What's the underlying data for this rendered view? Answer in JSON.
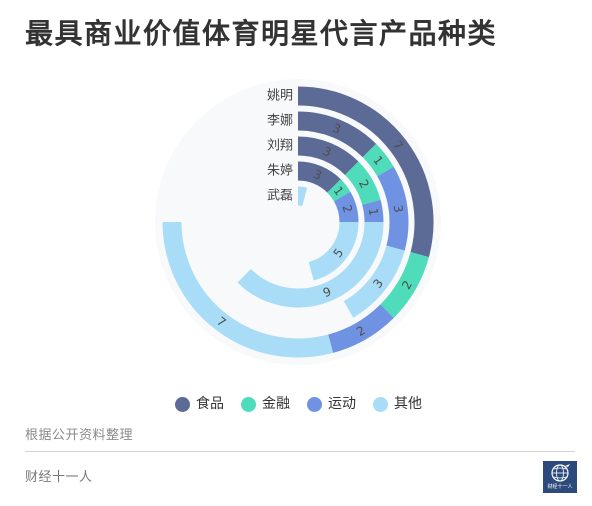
{
  "chart_data": {
    "type": "bar",
    "coordinate_system": "polar",
    "stacked": true,
    "title": "最具商业价值体育明星代言产品种类",
    "categories": [
      "姚明",
      "李娜",
      "刘翔",
      "朱婷",
      "武磊"
    ],
    "series": [
      {
        "name": "食品",
        "color": "#5b6b96",
        "values": [
          7,
          3,
          3,
          3,
          0
        ]
      },
      {
        "name": "金融",
        "color": "#4fdcba",
        "values": [
          2,
          1,
          2,
          1,
          0
        ]
      },
      {
        "name": "运动",
        "color": "#6f93e2",
        "values": [
          2,
          3,
          1,
          2,
          0
        ]
      },
      {
        "name": "其他",
        "color": "#a9ddf7",
        "values": [
          7,
          3,
          9,
          5,
          1
        ]
      }
    ],
    "angle_axis_range": [
      0,
      24
    ],
    "legend": "bottom-center",
    "grid": false
  },
  "footer": {
    "source_note": "根据公开资料整理",
    "brand": "财经十一人",
    "logo_text": "财经十一人"
  }
}
